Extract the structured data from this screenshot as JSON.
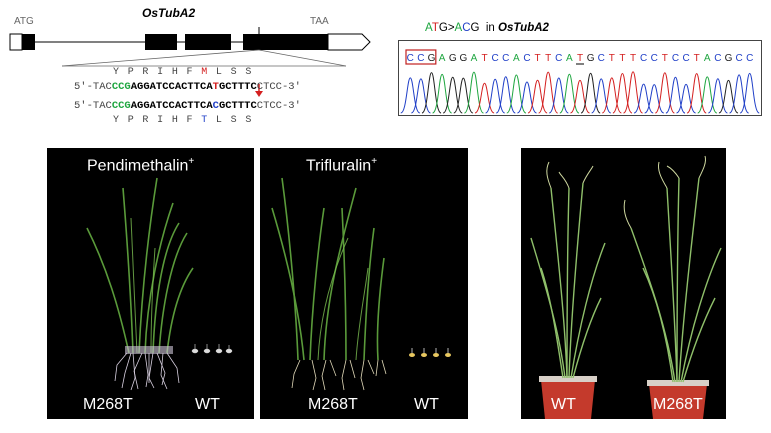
{
  "gene_diagram": {
    "gene_name": "OsTubA2",
    "start_codon": "ATG",
    "stop_codon": "TAA",
    "aa_top": [
      "Y",
      "P",
      "R",
      "I",
      "H",
      "F",
      "M",
      "L",
      "S",
      "S"
    ],
    "aa_bottom": [
      "Y",
      "P",
      "R",
      "I",
      "H",
      "F",
      "T",
      "L",
      "S",
      "S"
    ],
    "seq_wt": {
      "pre": "5′-TAC",
      "ccg": "CCG",
      "mid": "AGGATCCACTTCA",
      "mut": "T",
      "post": "GCTTTC",
      "tail": "CTCC-3′"
    },
    "seq_mut": {
      "pre": "5′-TAC",
      "ccg": "CCG",
      "mid": "AGGATCCACTTCA",
      "mut": "C",
      "post": "GCTTTC",
      "tail": "CTCC-3′"
    }
  },
  "chromatogram": {
    "title_pre": "A",
    "title_t": "T",
    "title_g": "G",
    "title_arrow": ">",
    "title_a2": "A",
    "title_c": "C",
    "title_g2": "G",
    "title_in": "in",
    "title_gene": "OsTubA2",
    "bases": [
      "C",
      "C",
      "G",
      "A",
      "G",
      "G",
      "A",
      "T",
      "C",
      "C",
      "A",
      "C",
      "T",
      "T",
      "C",
      "A",
      "T",
      "G",
      "C",
      "T",
      "T",
      "T",
      "C",
      "C",
      "T",
      "C",
      "C",
      "T",
      "A",
      "C",
      "G",
      "C",
      "C"
    ],
    "colors": {
      "A": "#1fa640",
      "C": "#2140c8",
      "G": "#222222",
      "T": "#d42020"
    }
  },
  "panels": {
    "pendimethalin": {
      "title": "Pendimethalin",
      "sup": "+",
      "left": "M268T",
      "right": "WT"
    },
    "trifluralin": {
      "title": "Trifluralin",
      "sup": "+",
      "left": "M268T",
      "right": "WT"
    },
    "mature": {
      "left": "WT",
      "right": "M268T"
    }
  }
}
